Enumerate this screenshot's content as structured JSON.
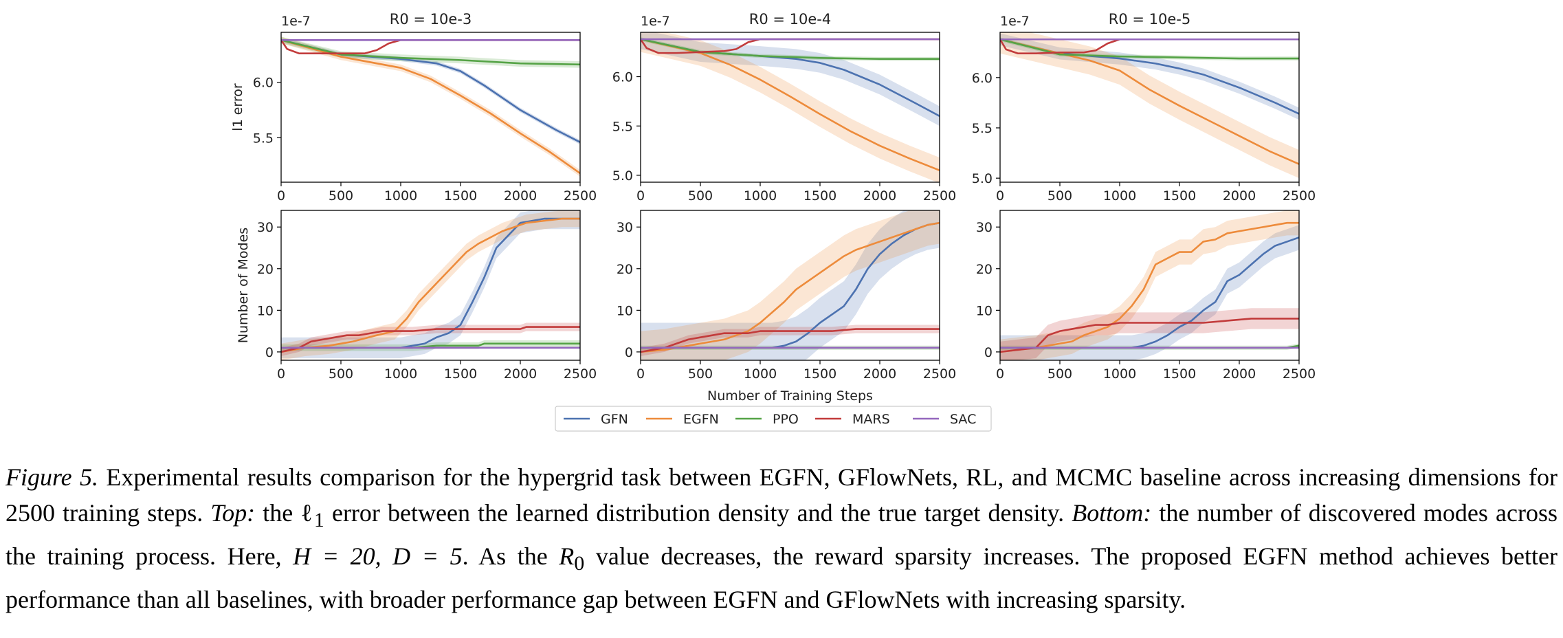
{
  "figure": {
    "shared_xlabel": "Number of Training Steps",
    "row_ylabels": [
      "l1 error",
      "Number of Modes"
    ],
    "top_offset_label": "1e-7",
    "legend": [
      {
        "name": "GFN",
        "color": "#4c72b0"
      },
      {
        "name": "EGFN",
        "color": "#ed8b3b"
      },
      {
        "name": "PPO",
        "color": "#55a346"
      },
      {
        "name": "MARS",
        "color": "#c23b3b"
      },
      {
        "name": "SAC",
        "color": "#9467bd"
      }
    ],
    "colors": {
      "GFN": "#4c72b0",
      "EGFN": "#ed8b3b",
      "PPO": "#55a346",
      "MARS": "#c23b3b",
      "SAC": "#9467bd"
    }
  },
  "caption": {
    "label": "Figure 5.",
    "part1": " Experimental results comparison for the hypergrid task between EGFN, GFlowNets, RL, and MCMC baseline across increasing dimensions for 2500 training steps. ",
    "top_label": "Top:",
    "part2": " the ℓ",
    "sub1": "1",
    "part3": " error between the learned distribution density and the true target density. ",
    "bottom_label": "Bottom:",
    "part4": " the number of discovered modes across the training process. Here, ",
    "math1": "H = 20, D = 5",
    "part5": ". As the ",
    "math2": "R",
    "sub2": "0",
    "part6": " value decreases, the reward sparsity increases. The proposed EGFN method achieves better performance than all baselines, with broader performance gap between EGFN and GFlowNets with increasing sparsity."
  },
  "chart_data": [
    {
      "type": "line",
      "title": "R0 = 10e-3",
      "xlabel": "",
      "ylabel": "l1 error",
      "y_offset_label": "1e-7",
      "xlim": [
        0,
        2500
      ],
      "ylim": [
        5.1,
        6.45
      ],
      "xticks": [
        0,
        500,
        1000,
        1500,
        2000,
        2500
      ],
      "yticks": [
        5.5,
        6.0
      ],
      "series": [
        {
          "name": "GFN",
          "x": [
            0,
            500,
            1000,
            1300,
            1500,
            1700,
            2000,
            2300,
            2500
          ],
          "y": [
            6.38,
            6.25,
            6.21,
            6.17,
            6.1,
            5.97,
            5.75,
            5.57,
            5.46
          ],
          "band": 0.02
        },
        {
          "name": "EGFN",
          "x": [
            0,
            500,
            1000,
            1250,
            1500,
            1750,
            2000,
            2250,
            2500
          ],
          "y": [
            6.38,
            6.23,
            6.13,
            6.03,
            5.88,
            5.72,
            5.54,
            5.37,
            5.18
          ],
          "band": 0.03
        },
        {
          "name": "PPO",
          "x": [
            0,
            500,
            1000,
            1500,
            2000,
            2500
          ],
          "y": [
            6.38,
            6.25,
            6.22,
            6.2,
            6.17,
            6.16
          ],
          "band": 0.03
        },
        {
          "name": "MARS",
          "x": [
            0,
            50,
            150,
            300,
            500,
            700,
            800,
            900,
            1000,
            1500,
            2000,
            2500
          ],
          "y": [
            6.38,
            6.3,
            6.26,
            6.26,
            6.26,
            6.26,
            6.29,
            6.35,
            6.38,
            6.38,
            6.38,
            6.38
          ],
          "band": 0.0
        },
        {
          "name": "SAC",
          "x": [
            0,
            2500
          ],
          "y": [
            6.38,
            6.38
          ],
          "band": 0.0
        }
      ]
    },
    {
      "type": "line",
      "title": "R0 = 10e-4",
      "xlabel": "",
      "ylabel": "",
      "y_offset_label": "1e-7",
      "xlim": [
        0,
        2500
      ],
      "ylim": [
        4.93,
        6.45
      ],
      "xticks": [
        0,
        500,
        1000,
        1500,
        2000,
        2500
      ],
      "yticks": [
        5.0,
        5.5,
        6.0
      ],
      "series": [
        {
          "name": "GFN",
          "x": [
            0,
            500,
            1000,
            1300,
            1500,
            1700,
            2000,
            2300,
            2500
          ],
          "y": [
            6.38,
            6.25,
            6.21,
            6.18,
            6.14,
            6.07,
            5.92,
            5.73,
            5.6
          ],
          "band": 0.1
        },
        {
          "name": "EGFN",
          "x": [
            0,
            500,
            750,
            1000,
            1250,
            1500,
            1750,
            2000,
            2250,
            2500
          ],
          "y": [
            6.38,
            6.24,
            6.12,
            5.97,
            5.8,
            5.62,
            5.45,
            5.3,
            5.17,
            5.05
          ],
          "band": 0.13
        },
        {
          "name": "PPO",
          "x": [
            0,
            500,
            1000,
            1500,
            2000,
            2500
          ],
          "y": [
            6.38,
            6.25,
            6.21,
            6.19,
            6.18,
            6.18
          ],
          "band": 0.02
        },
        {
          "name": "MARS",
          "x": [
            0,
            50,
            150,
            300,
            500,
            700,
            800,
            900,
            1000,
            1500,
            2000,
            2500
          ],
          "y": [
            6.38,
            6.29,
            6.24,
            6.24,
            6.25,
            6.26,
            6.28,
            6.35,
            6.38,
            6.38,
            6.38,
            6.38
          ],
          "band": 0.0
        },
        {
          "name": "SAC",
          "x": [
            0,
            2500
          ],
          "y": [
            6.38,
            6.38
          ],
          "band": 0.0
        }
      ]
    },
    {
      "type": "line",
      "title": "R0 = 10e-5",
      "xlabel": "",
      "ylabel": "",
      "y_offset_label": "1e-7",
      "xlim": [
        0,
        2500
      ],
      "ylim": [
        4.96,
        6.45
      ],
      "xticks": [
        0,
        500,
        1000,
        1500,
        2000,
        2500
      ],
      "yticks": [
        5.0,
        5.5,
        6.0
      ],
      "series": [
        {
          "name": "GFN",
          "x": [
            0,
            500,
            1000,
            1300,
            1500,
            1700,
            2000,
            2300,
            2500
          ],
          "y": [
            6.38,
            6.24,
            6.19,
            6.14,
            6.09,
            6.03,
            5.9,
            5.75,
            5.64
          ],
          "band": 0.06
        },
        {
          "name": "EGFN",
          "x": [
            0,
            500,
            750,
            1000,
            1250,
            1500,
            1750,
            2000,
            2250,
            2500
          ],
          "y": [
            6.38,
            6.24,
            6.17,
            6.07,
            5.88,
            5.72,
            5.57,
            5.42,
            5.27,
            5.14
          ],
          "band": 0.14
        },
        {
          "name": "PPO",
          "x": [
            0,
            500,
            1000,
            1500,
            2000,
            2500
          ],
          "y": [
            6.38,
            6.23,
            6.21,
            6.2,
            6.19,
            6.19
          ],
          "band": 0.02
        },
        {
          "name": "MARS",
          "x": [
            0,
            50,
            150,
            300,
            500,
            700,
            800,
            900,
            1000,
            1500,
            2000,
            2500
          ],
          "y": [
            6.38,
            6.28,
            6.24,
            6.24,
            6.25,
            6.25,
            6.27,
            6.34,
            6.38,
            6.38,
            6.38,
            6.38
          ],
          "band": 0.0
        },
        {
          "name": "SAC",
          "x": [
            0,
            2500
          ],
          "y": [
            6.38,
            6.38
          ],
          "band": 0.0
        }
      ]
    },
    {
      "type": "line",
      "title": "",
      "xlabel": "",
      "ylabel": "Number of Modes",
      "xlim": [
        0,
        2500
      ],
      "ylim": [
        -2,
        34
      ],
      "xticks": [
        0,
        500,
        1000,
        1500,
        2000,
        2500
      ],
      "yticks": [
        0,
        10,
        20,
        30
      ],
      "series": [
        {
          "name": "GFN",
          "x": [
            0,
            900,
            1000,
            1100,
            1200,
            1300,
            1400,
            1500,
            1600,
            1700,
            1800,
            1900,
            2000,
            2100,
            2200,
            2300,
            2400,
            2500
          ],
          "y": [
            1,
            1,
            1,
            1.5,
            2,
            3.5,
            4.5,
            6.5,
            12,
            18,
            25,
            28,
            31,
            31.5,
            32,
            32,
            32,
            32
          ],
          "band": 2.5
        },
        {
          "name": "EGFN",
          "x": [
            0,
            200,
            400,
            600,
            800,
            950,
            1050,
            1150,
            1250,
            1350,
            1450,
            1550,
            1650,
            1750,
            1850,
            1950,
            2050,
            2200,
            2350,
            2500
          ],
          "y": [
            0,
            1,
            1.5,
            2.5,
            4,
            5,
            8,
            12,
            15,
            18,
            21,
            24,
            26,
            27.5,
            29,
            30,
            31,
            31.5,
            32,
            32
          ],
          "band": 2
        },
        {
          "name": "PPO",
          "x": [
            0,
            1100,
            1300,
            1500,
            1650,
            1700,
            2500
          ],
          "y": [
            1,
            1,
            1.5,
            1.5,
            1.5,
            2,
            2
          ],
          "band": 0.8
        },
        {
          "name": "MARS",
          "x": [
            0,
            150,
            250,
            350,
            450,
            550,
            650,
            750,
            850,
            950,
            1100,
            1300,
            1500,
            1700,
            1900,
            2000,
            2050,
            2200,
            2500
          ],
          "y": [
            0,
            1,
            2.5,
            3,
            3.5,
            4,
            4,
            4.5,
            5,
            5,
            5,
            5.5,
            5.5,
            5.5,
            5.5,
            5.5,
            6,
            6,
            6
          ],
          "band": 1
        },
        {
          "name": "SAC",
          "x": [
            0,
            2500
          ],
          "y": [
            1,
            1
          ],
          "band": 0
        }
      ]
    },
    {
      "type": "line",
      "title": "",
      "xlabel": "Number of Training Steps",
      "ylabel": "",
      "xlim": [
        0,
        2500
      ],
      "ylim": [
        -2,
        34
      ],
      "xticks": [
        0,
        500,
        1000,
        1500,
        2000,
        2500
      ],
      "yticks": [
        0,
        10,
        20,
        30
      ],
      "series": [
        {
          "name": "GFN",
          "x": [
            0,
            1100,
            1200,
            1300,
            1400,
            1500,
            1600,
            1700,
            1800,
            1900,
            2000,
            2100,
            2200,
            2300,
            2400,
            2500
          ],
          "y": [
            1,
            1,
            1.5,
            2.5,
            4.5,
            7,
            9,
            11,
            15,
            20,
            23.5,
            26,
            28,
            29.5,
            30.5,
            31
          ],
          "band": 6
        },
        {
          "name": "EGFN",
          "x": [
            0,
            200,
            300,
            400,
            500,
            600,
            700,
            800,
            900,
            1000,
            1100,
            1200,
            1300,
            1400,
            1500,
            1600,
            1700,
            1800,
            1900,
            2000,
            2100,
            2200,
            2300,
            2400,
            2500
          ],
          "y": [
            0,
            0.5,
            1,
            1.5,
            2,
            2.5,
            3,
            4,
            5,
            7,
            9.5,
            12,
            15,
            17,
            19,
            21,
            23,
            24.5,
            25.5,
            26.5,
            27.5,
            28.5,
            29.5,
            30.5,
            31
          ],
          "band": 5
        },
        {
          "name": "PPO",
          "x": [
            0,
            2500
          ],
          "y": [
            1,
            1
          ],
          "band": 0.5
        },
        {
          "name": "MARS",
          "x": [
            0,
            200,
            300,
            400,
            500,
            600,
            700,
            800,
            900,
            1000,
            1200,
            1400,
            1600,
            1800,
            2000,
            2200,
            2500
          ],
          "y": [
            0,
            1,
            2,
            3,
            3.5,
            4,
            4.5,
            4.5,
            4.5,
            5,
            5,
            5,
            5,
            5.5,
            5.5,
            5.5,
            5.5
          ],
          "band": 1
        },
        {
          "name": "SAC",
          "x": [
            0,
            2500
          ],
          "y": [
            1,
            1
          ],
          "band": 0
        }
      ]
    },
    {
      "type": "line",
      "title": "",
      "xlabel": "",
      "ylabel": "",
      "xlim": [
        0,
        2500
      ],
      "ylim": [
        -2,
        34
      ],
      "xticks": [
        0,
        500,
        1000,
        1500,
        2000,
        2500
      ],
      "yticks": [
        0,
        10,
        20,
        30
      ],
      "series": [
        {
          "name": "GFN",
          "x": [
            0,
            1100,
            1200,
            1300,
            1400,
            1500,
            1600,
            1700,
            1800,
            1900,
            2000,
            2100,
            2200,
            2300,
            2400,
            2500
          ],
          "y": [
            1,
            1,
            1.5,
            2.5,
            4,
            6,
            7.5,
            10,
            12,
            17,
            18.5,
            21,
            23.5,
            25.5,
            26.5,
            27.5
          ],
          "band": 3
        },
        {
          "name": "EGFN",
          "x": [
            0,
            300,
            400,
            500,
            600,
            700,
            800,
            900,
            1000,
            1100,
            1200,
            1300,
            1400,
            1500,
            1600,
            1700,
            1800,
            1900,
            2000,
            2100,
            2200,
            2300,
            2400,
            2500
          ],
          "y": [
            0,
            1,
            1.5,
            2,
            2.5,
            4,
            5,
            6,
            8,
            11,
            15,
            21,
            22.5,
            24,
            24,
            26.5,
            27,
            28.5,
            29,
            29.5,
            30,
            30.5,
            31,
            31
          ],
          "band": 3
        },
        {
          "name": "PPO",
          "x": [
            0,
            2400,
            2500
          ],
          "y": [
            1,
            1,
            1.5
          ],
          "band": 0.5
        },
        {
          "name": "MARS",
          "x": [
            0,
            300,
            400,
            500,
            600,
            700,
            800,
            900,
            1000,
            1100,
            1300,
            1500,
            1700,
            1900,
            2100,
            2300,
            2500
          ],
          "y": [
            0,
            1,
            4,
            5,
            5.5,
            6,
            6.5,
            6.5,
            7,
            7,
            7,
            7,
            7,
            7.5,
            8,
            8,
            8
          ],
          "band": 2.5
        },
        {
          "name": "SAC",
          "x": [
            0,
            2500
          ],
          "y": [
            1,
            1
          ],
          "band": 0
        }
      ]
    }
  ]
}
